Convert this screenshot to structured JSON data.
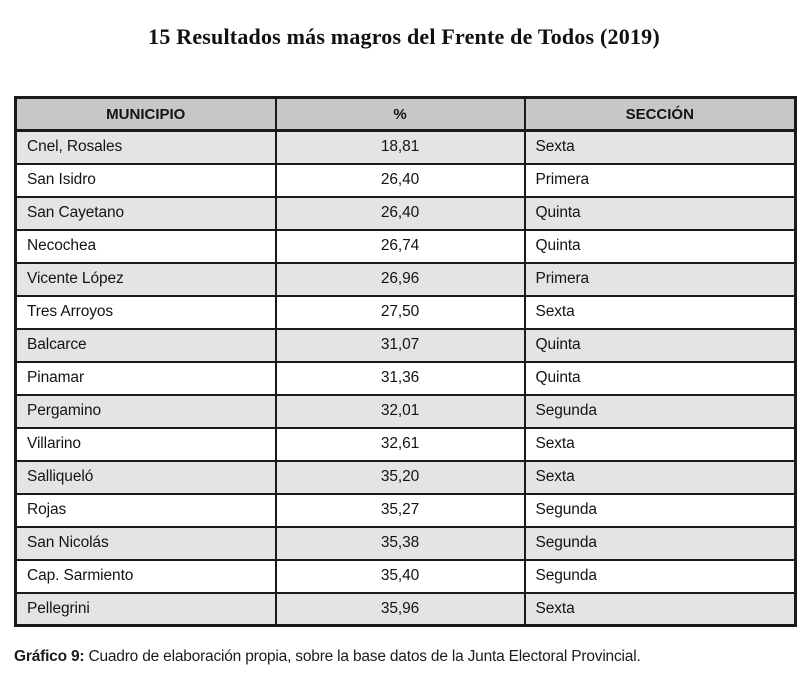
{
  "title": "15 Resultados más magros del Frente de Todos (2019)",
  "table": {
    "columns": [
      "MUNICIPIO",
      "%",
      "SECCIÓN"
    ],
    "rows": [
      {
        "municipio": "Cnel, Rosales",
        "pct": "18,81",
        "seccion": "Sexta"
      },
      {
        "municipio": "San Isidro",
        "pct": "26,40",
        "seccion": "Primera"
      },
      {
        "municipio": "San Cayetano",
        "pct": "26,40",
        "seccion": "Quinta"
      },
      {
        "municipio": "Necochea",
        "pct": "26,74",
        "seccion": "Quinta"
      },
      {
        "municipio": "Vicente López",
        "pct": "26,96",
        "seccion": "Primera"
      },
      {
        "municipio": "Tres Arroyos",
        "pct": "27,50",
        "seccion": "Sexta"
      },
      {
        "municipio": "Balcarce",
        "pct": "31,07",
        "seccion": "Quinta"
      },
      {
        "municipio": "Pinamar",
        "pct": "31,36",
        "seccion": "Quinta"
      },
      {
        "municipio": "Pergamino",
        "pct": "32,01",
        "seccion": "Segunda"
      },
      {
        "municipio": "Villarino",
        "pct": "32,61",
        "seccion": "Sexta"
      },
      {
        "municipio": "Salliqueló",
        "pct": "35,20",
        "seccion": "Sexta"
      },
      {
        "municipio": "Rojas",
        "pct": "35,27",
        "seccion": "Segunda"
      },
      {
        "municipio": "San Nicolás",
        "pct": "35,38",
        "seccion": "Segunda"
      },
      {
        "municipio": "Cap. Sarmiento",
        "pct": "35,40",
        "seccion": "Segunda"
      },
      {
        "municipio": "Pellegrini",
        "pct": "35,96",
        "seccion": "Sexta"
      }
    ]
  },
  "caption": {
    "label": "Gráfico 9:",
    "text": " Cuadro de elaboración propia, sobre la base datos de la Junta Electoral Provincial."
  },
  "colors": {
    "header_bg": "#c7c7c7",
    "row_alt_bg": "#e4e4e4",
    "row_bg": "#ffffff",
    "border": "#1a1a1a"
  }
}
